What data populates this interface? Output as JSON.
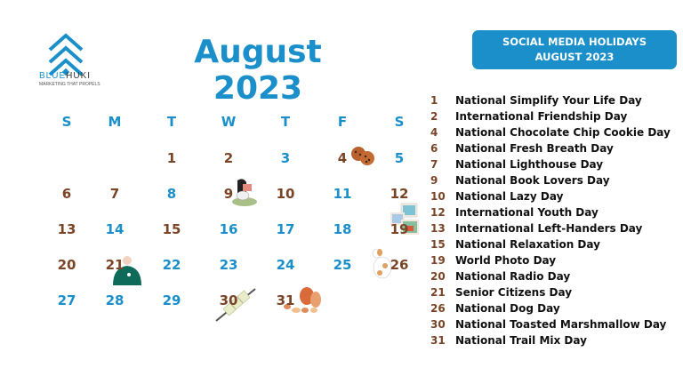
{
  "logo": {
    "name_part1": "BLUE",
    "name_part2": "HUKI",
    "tagline": "MARKETING THAT PROPELS"
  },
  "title": "August 2023",
  "banner": {
    "line1": "SOCIAL MEDIA HOLIDAYS",
    "line2": "AUGUST 2023"
  },
  "colors": {
    "accent": "#1a8fc9",
    "holiday": "#7a4427",
    "text": "#111111"
  },
  "calendar": {
    "weekdays": [
      "S",
      "M",
      "T",
      "W",
      "T",
      "F",
      "S"
    ],
    "first_weekday_index": 2,
    "days_in_month": 31,
    "holiday_days": [
      1,
      2,
      4,
      6,
      7,
      9,
      10,
      12,
      13,
      15,
      19,
      20,
      21,
      26,
      30,
      31
    ],
    "illustrations": [
      {
        "day": 4,
        "icon": "cookies-icon"
      },
      {
        "day": 9,
        "icon": "reading-person-icon"
      },
      {
        "day": 19,
        "icon": "photos-icon"
      },
      {
        "day": 21,
        "icon": "senior-person-icon"
      },
      {
        "day": 26,
        "icon": "dog-icon"
      },
      {
        "day": 30,
        "icon": "marshmallow-skewer-icon"
      },
      {
        "day": 31,
        "icon": "trail-mix-icon"
      }
    ]
  },
  "holidays": [
    {
      "day": "1",
      "name": "National Simplify Your Life Day"
    },
    {
      "day": "2",
      "name": "International Friendship Day"
    },
    {
      "day": "4",
      "name": "National Chocolate Chip Cookie Day"
    },
    {
      "day": "6",
      "name": "National Fresh Breath Day"
    },
    {
      "day": "7",
      "name": "National Lighthouse Day"
    },
    {
      "day": "9",
      "name": "National Book Lovers Day"
    },
    {
      "day": "10",
      "name": "National Lazy Day"
    },
    {
      "day": "12",
      "name": "International Youth Day"
    },
    {
      "day": "13",
      "name": "International Left-Handers Day"
    },
    {
      "day": "15",
      "name": "National Relaxation Day"
    },
    {
      "day": "19",
      "name": "World Photo Day"
    },
    {
      "day": "20",
      "name": "National Radio Day"
    },
    {
      "day": "21",
      "name": "Senior Citizens Day"
    },
    {
      "day": "26",
      "name": "National Dog Day"
    },
    {
      "day": "30",
      "name": "National Toasted Marshmallow Day"
    },
    {
      "day": "31",
      "name": "National Trail Mix Day"
    }
  ]
}
